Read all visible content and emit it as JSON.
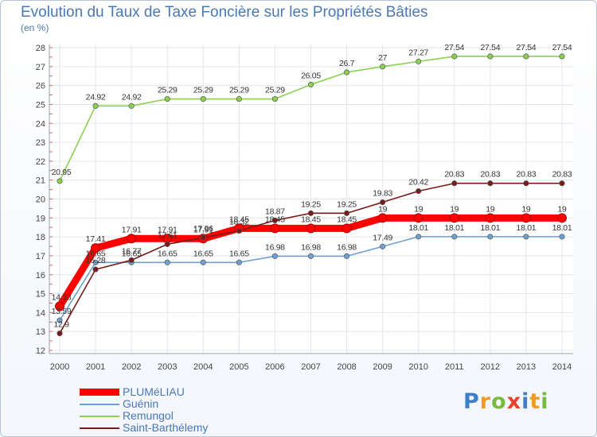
{
  "title": "Evolution du Taux de Taxe Foncière sur les Propriétés Bâties",
  "subtitle": "(en %)",
  "logo": {
    "letters": [
      "P",
      "r",
      "o",
      "x",
      "i",
      "t",
      "i"
    ],
    "colors": [
      "#3f7fc8",
      "#f09a28",
      "#78b940",
      "#e8412e",
      "#3f7fc8",
      "#f09a28",
      "#78b940"
    ]
  },
  "chart_data": {
    "type": "line",
    "title": "Evolution du Taux de Taxe Foncière sur les Propriétés Bâties",
    "ylabel": "(en %)",
    "x": [
      2000,
      2001,
      2002,
      2003,
      2004,
      2005,
      2006,
      2007,
      2008,
      2009,
      2010,
      2011,
      2012,
      2013,
      2014
    ],
    "ylim": [
      12,
      28
    ],
    "yticks": [
      12,
      13,
      14,
      15,
      16,
      17,
      18,
      19,
      20,
      21,
      22,
      23,
      24,
      25,
      26,
      27,
      28
    ],
    "grid": true,
    "legend_position": "bottom-left",
    "series": [
      {
        "name": "PLUMéLIAU",
        "color": "#ff0000",
        "values": [
          14.33,
          17.41,
          17.91,
          17.91,
          17.91,
          18.45,
          18.45,
          18.45,
          18.45,
          19,
          19,
          19,
          19,
          19,
          19
        ],
        "labels": [
          "14.33",
          "17.41",
          "17.91",
          "17.91",
          "17.91",
          "18.45",
          "18.45",
          "18.45",
          "18.45",
          "19",
          "19",
          "19",
          "19",
          "19",
          "19"
        ]
      },
      {
        "name": "Guénin",
        "color": "#6fa0d0",
        "values": [
          13.59,
          16.65,
          16.65,
          16.65,
          16.65,
          16.65,
          16.98,
          16.98,
          16.98,
          17.49,
          18.01,
          18.01,
          18.01,
          18.01,
          18.01
        ],
        "labels": [
          "13.59",
          "16.65",
          "16.65",
          "16.65",
          "16.65",
          "16.65",
          "16.98",
          "16.98",
          "16.98",
          "17.49",
          "18.01",
          "18.01",
          "18.01",
          "18.01",
          "18.01"
        ]
      },
      {
        "name": "Remungol",
        "color": "#8cd050",
        "values": [
          20.95,
          24.92,
          24.92,
          25.29,
          25.29,
          25.29,
          25.29,
          26.05,
          26.7,
          27,
          27.27,
          27.54,
          27.54,
          27.54,
          27.54
        ],
        "labels": [
          "20.95",
          "24.92",
          "24.92",
          "25.29",
          "25.29",
          "25.29",
          "25.29",
          "26.05",
          "26.7",
          "27",
          "27.27",
          "27.54",
          "27.54",
          "27.54",
          "27.54"
        ]
      },
      {
        "name": "Saint-Barthélemy",
        "color": "#7a1a1a",
        "values": [
          12.9,
          16.28,
          16.77,
          17.61,
          17.96,
          18.32,
          18.87,
          19.25,
          19.25,
          19.83,
          20.42,
          20.83,
          20.83,
          20.83,
          20.83
        ],
        "labels": [
          "12.9",
          "16.28",
          "16.77",
          "17.61",
          "17.96",
          "18.32",
          "18.87",
          "19.25",
          "19.25",
          "19.83",
          "20.42",
          "20.83",
          "20.83",
          "20.83",
          "20.83"
        ]
      }
    ]
  }
}
